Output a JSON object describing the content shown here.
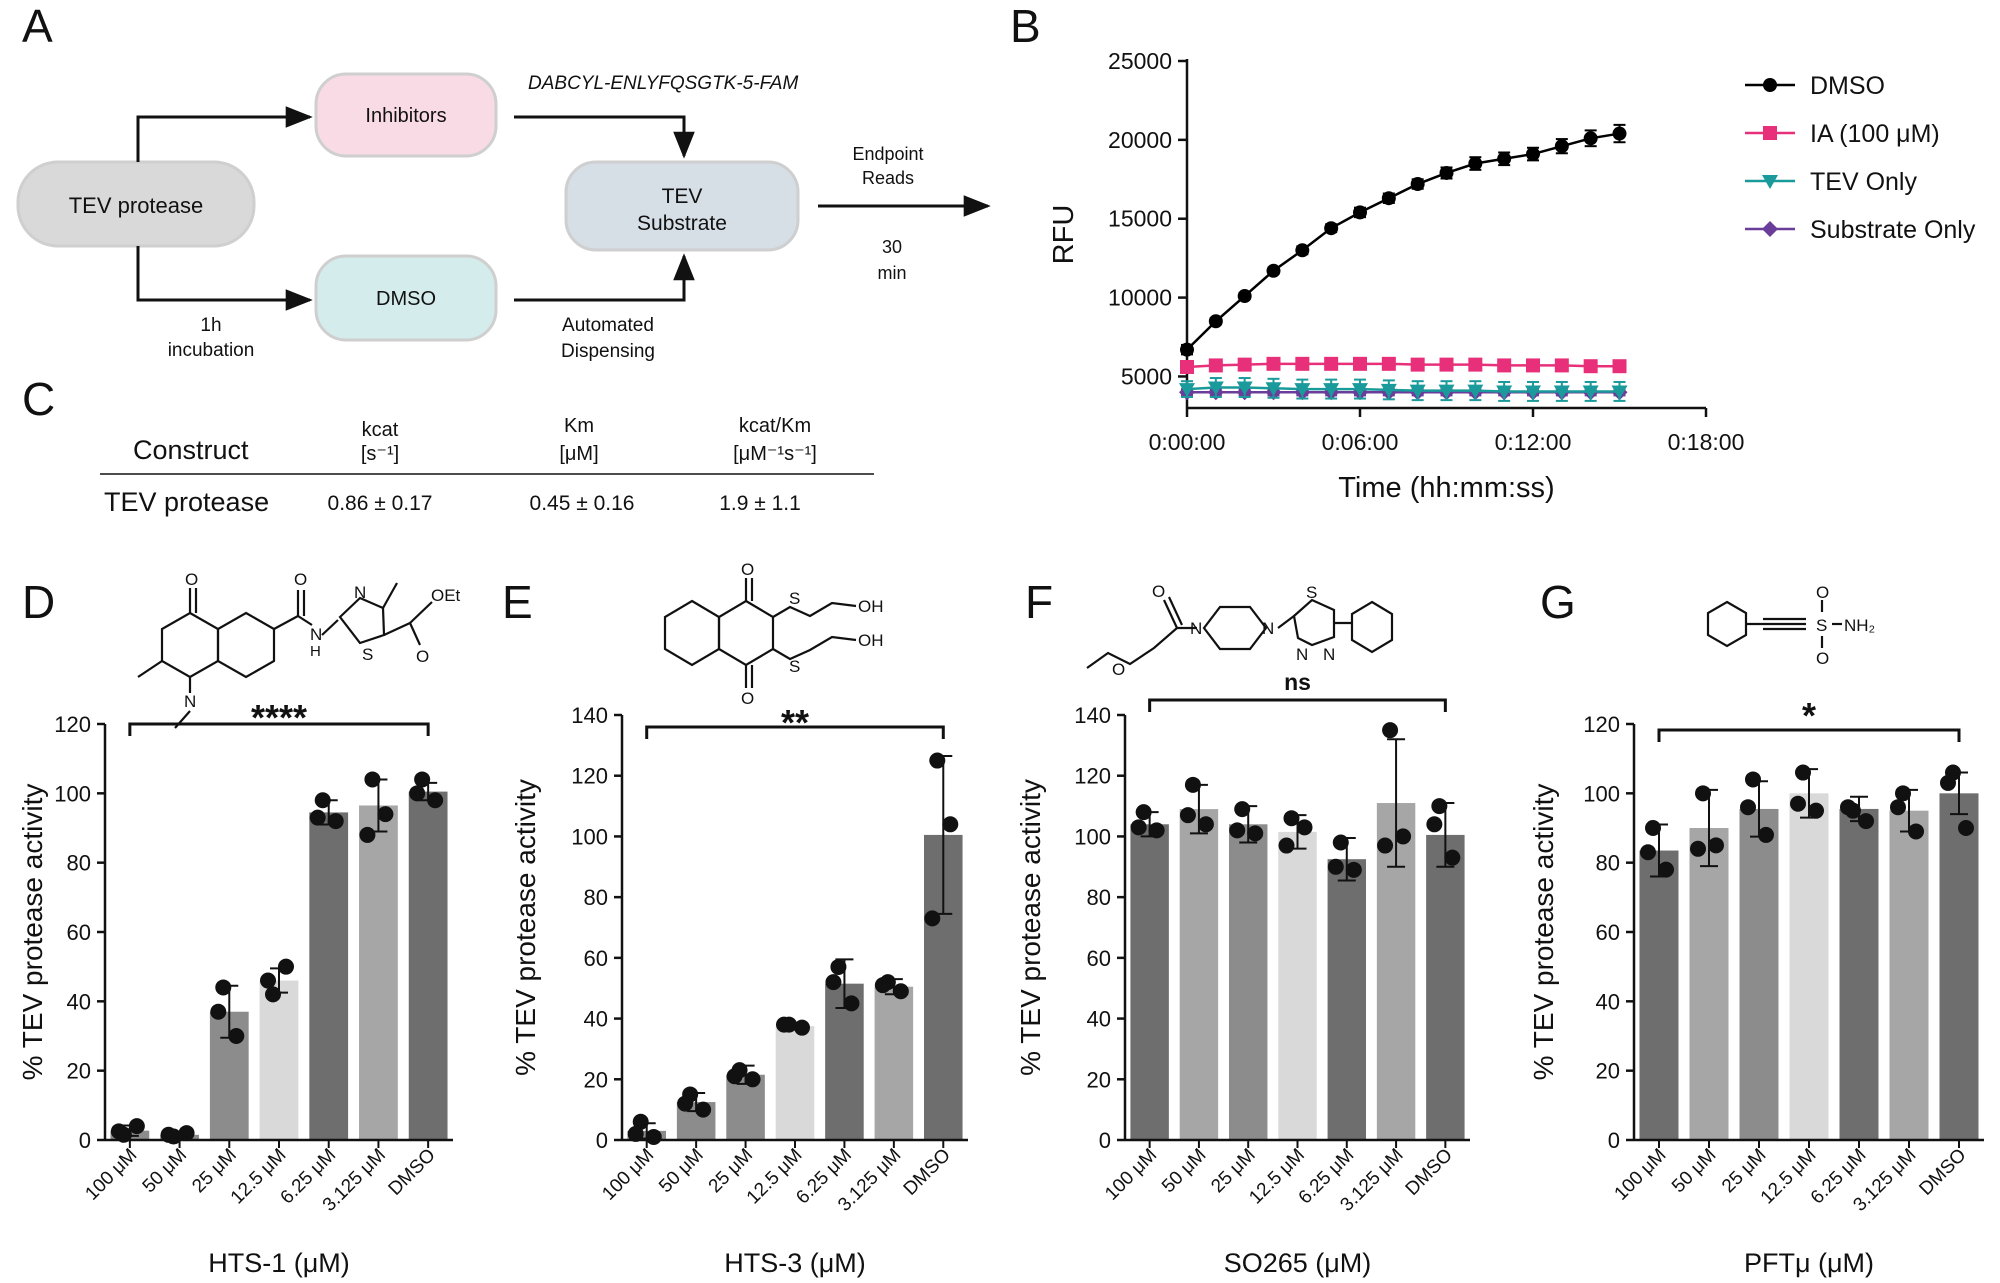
{
  "panel_letters": {
    "A": "A",
    "B": "B",
    "C": "C",
    "D": "D",
    "E": "E",
    "F": "F",
    "G": "G"
  },
  "panelA": {
    "tev_protease": "TEV protease",
    "inhibitors": "Inhibitors",
    "dmso": "DMSO",
    "tev_substrate_l1": "TEV",
    "tev_substrate_l2": "Substrate",
    "substrate_seq": "DABCYL-ENLYFQSGTK-5-FAM",
    "incubation_l1": "1h",
    "incubation_l2": "incubation",
    "dispensing_l1": "Automated",
    "dispensing_l2": "Dispensing",
    "endpoint_l1": "Endpoint",
    "endpoint_l2": "Reads",
    "time_l1": "30",
    "time_l2": "min",
    "colors": {
      "protease": "#d9d9d9",
      "inhibitors": "#f9dbe6",
      "dmso": "#d5ecec",
      "substrate": "#d6dee6"
    }
  },
  "panelC": {
    "h_construct": "Construct",
    "h_kcat": "kcat",
    "h_kcat_unit": "[s⁻¹]",
    "h_km": "Km",
    "h_km_unit": "[μM]",
    "h_kcatkm": "kcat/Km",
    "h_kcatkm_unit": "[μM⁻¹s⁻¹]",
    "row_name": "TEV protease",
    "row_kcat": "0.86 ± 0.17",
    "row_km": "0.45 ± 0.16",
    "row_kcatkm": "1.9 ± 1.1"
  },
  "structures": {
    "D_oxo": "O",
    "D_N": "N",
    "D_NH": "N",
    "D_H": "H",
    "D_S": "S",
    "D_Nthz": "N",
    "D_OEt": "OEt",
    "D_Oester": "O",
    "E_O1": "O",
    "E_O2": "O",
    "E_S1": "S",
    "E_S2": "S",
    "E_OH1": "OH",
    "E_OH2": "OH",
    "F_O1": "O",
    "F_O2": "O",
    "F_N1": "N",
    "F_N2": "N",
    "F_S": "S",
    "F_N3": "N",
    "F_N4": "N",
    "G_O1": "O",
    "G_O2": "O",
    "G_S": "S",
    "G_NH2": "NH₂"
  },
  "chart_data": [
    {
      "id": "B",
      "type": "line",
      "xlabel": "Time (hh:mm:ss)",
      "ylabel": "RFU",
      "x_unit": "seconds",
      "x": [
        0,
        60,
        120,
        180,
        240,
        300,
        360,
        420,
        480,
        540,
        600,
        660,
        720,
        780,
        840,
        900
      ],
      "xticks": [
        0,
        360,
        720,
        1080
      ],
      "xtick_labels": [
        "0:00:00",
        "0:06:00",
        "0:12:00",
        "0:18:00"
      ],
      "xlim": [
        0,
        1080
      ],
      "ylim": [
        3000,
        25000
      ],
      "yticks": [
        5000,
        10000,
        15000,
        20000,
        25000
      ],
      "legend_position": "right",
      "series": [
        {
          "name": "DMSO",
          "color": "#000000",
          "marker": "circle",
          "values": [
            6700,
            8500,
            10100,
            11700,
            13000,
            14400,
            15400,
            16300,
            17200,
            17900,
            18500,
            18800,
            19100,
            19600,
            20100,
            20400
          ],
          "errors": [
            300,
            200,
            200,
            200,
            250,
            250,
            300,
            300,
            300,
            350,
            400,
            400,
            400,
            450,
            500,
            550
          ]
        },
        {
          "name": "IA (100 μM)",
          "color": "#e8307a",
          "marker": "square",
          "values": [
            5600,
            5700,
            5750,
            5800,
            5800,
            5800,
            5800,
            5800,
            5750,
            5750,
            5750,
            5700,
            5700,
            5700,
            5650,
            5650
          ],
          "errors": [
            150,
            150,
            150,
            150,
            150,
            150,
            150,
            150,
            150,
            150,
            150,
            150,
            150,
            150,
            150,
            150
          ]
        },
        {
          "name": "TEV Only",
          "color": "#1a9a9a",
          "marker": "triangle-down",
          "values": [
            4200,
            4300,
            4300,
            4250,
            4200,
            4200,
            4200,
            4150,
            4100,
            4100,
            4100,
            4050,
            4050,
            4050,
            4050,
            4050
          ],
          "errors": [
            500,
            600,
            600,
            600,
            600,
            600,
            600,
            600,
            600,
            600,
            600,
            600,
            600,
            600,
            600,
            600
          ]
        },
        {
          "name": "Substrate Only",
          "color": "#6a3d9a",
          "marker": "diamond",
          "values": [
            4000,
            4000,
            4000,
            4000,
            4000,
            4000,
            4000,
            4000,
            4000,
            4000,
            4000,
            4000,
            4000,
            4000,
            4000,
            4000
          ],
          "errors": [
            200,
            200,
            200,
            200,
            200,
            200,
            200,
            200,
            200,
            200,
            200,
            200,
            200,
            200,
            200,
            200
          ]
        }
      ]
    },
    {
      "id": "D",
      "type": "bar",
      "xlabel": "HTS-1 (μM)",
      "ylabel": "% TEV protease activity",
      "categories": [
        "100 μM",
        "50 μM",
        "25 μM",
        "12.5 μM",
        "6.25 μM",
        "3.125 μM",
        "DMSO"
      ],
      "values": [
        2.7,
        1.5,
        37,
        46,
        94.5,
        96.5,
        100.5
      ],
      "errors": [
        1.5,
        0.8,
        7.5,
        3.5,
        3.5,
        7.5,
        2.5
      ],
      "points": [
        [
          1.5,
          4,
          2.5
        ],
        [
          1,
          2,
          1.5
        ],
        [
          44,
          30,
          37
        ],
        [
          42,
          50,
          46
        ],
        [
          98,
          92,
          93
        ],
        [
          104,
          94,
          88
        ],
        [
          104,
          98,
          100
        ]
      ],
      "bar_colors": [
        "#8c8c8c",
        "#8c8c8c",
        "#8c8c8c",
        "#d9d9d9",
        "#6e6e6e",
        "#a6a6a6",
        "#6e6e6e"
      ],
      "ylim": [
        0,
        120
      ],
      "yticks": [
        0,
        20,
        40,
        60,
        80,
        100,
        120
      ],
      "significance": "****"
    },
    {
      "id": "E",
      "type": "bar",
      "xlabel": "HTS-3 (μM)",
      "ylabel": "% TEV protease activity",
      "categories": [
        "100 μM",
        "50 μM",
        "25 μM",
        "12.5 μM",
        "6.25 μM",
        "3.125 μM",
        "DMSO"
      ],
      "values": [
        3,
        12.5,
        21.5,
        37.5,
        51.5,
        50.5,
        100.5
      ],
      "errors": [
        2.5,
        3,
        3,
        1,
        8,
        2.5,
        26
      ],
      "points": [
        [
          6,
          1,
          2
        ],
        [
          15,
          10,
          12
        ],
        [
          23,
          20,
          21
        ],
        [
          38,
          37,
          38
        ],
        [
          57,
          45,
          52
        ],
        [
          52,
          49,
          51
        ],
        [
          125,
          104,
          73
        ]
      ],
      "bar_colors": [
        "#8c8c8c",
        "#8c8c8c",
        "#8c8c8c",
        "#d9d9d9",
        "#6e6e6e",
        "#a6a6a6",
        "#6e6e6e"
      ],
      "ylim": [
        0,
        140
      ],
      "yticks": [
        0,
        20,
        40,
        60,
        80,
        100,
        120,
        140
      ],
      "significance": "**"
    },
    {
      "id": "F",
      "type": "bar",
      "xlabel": "SO265 (μM)",
      "ylabel": "% TEV protease activity",
      "categories": [
        "100 μM",
        "50 μM",
        "25 μM",
        "12.5 μM",
        "6.25 μM",
        "3.125 μM",
        "DMSO"
      ],
      "values": [
        104,
        109,
        104,
        101.5,
        92.5,
        111,
        100.5
      ],
      "errors": [
        4,
        8,
        6,
        5.5,
        7,
        21,
        10.5
      ],
      "points": [
        [
          108,
          102,
          103
        ],
        [
          117,
          104,
          107
        ],
        [
          109,
          101,
          102
        ],
        [
          106,
          103,
          97
        ],
        [
          98,
          89,
          90
        ],
        [
          135,
          100,
          97
        ],
        [
          110,
          93,
          104
        ]
      ],
      "bar_colors": [
        "#6e6e6e",
        "#a6a6a6",
        "#8c8c8c",
        "#d9d9d9",
        "#6e6e6e",
        "#a6a6a6",
        "#6e6e6e"
      ],
      "ylim": [
        0,
        140
      ],
      "yticks": [
        0,
        20,
        40,
        60,
        80,
        100,
        120,
        140
      ],
      "significance": "ns"
    },
    {
      "id": "G",
      "type": "bar",
      "xlabel": "PFTμ (μM)",
      "ylabel": "% TEV protease activity",
      "categories": [
        "100 μM",
        "50 μM",
        "25 μM",
        "12.5 μM",
        "6.25 μM",
        "3.125 μM",
        "DMSO"
      ],
      "values": [
        83.5,
        90,
        95.5,
        100,
        95.5,
        95,
        100
      ],
      "errors": [
        7.5,
        11,
        8,
        7,
        3.5,
        6,
        6
      ],
      "points": [
        [
          90,
          78,
          83
        ],
        [
          100,
          85,
          84
        ],
        [
          104,
          88,
          96
        ],
        [
          106,
          95,
          97
        ],
        [
          95,
          92,
          96
        ],
        [
          100,
          89,
          96
        ],
        [
          106,
          90,
          103
        ]
      ],
      "bar_colors": [
        "#6e6e6e",
        "#a6a6a6",
        "#8c8c8c",
        "#d9d9d9",
        "#6e6e6e",
        "#a6a6a6",
        "#6e6e6e"
      ],
      "ylim": [
        0,
        120
      ],
      "yticks": [
        0,
        20,
        40,
        60,
        80,
        100,
        120
      ],
      "significance": "*"
    }
  ]
}
